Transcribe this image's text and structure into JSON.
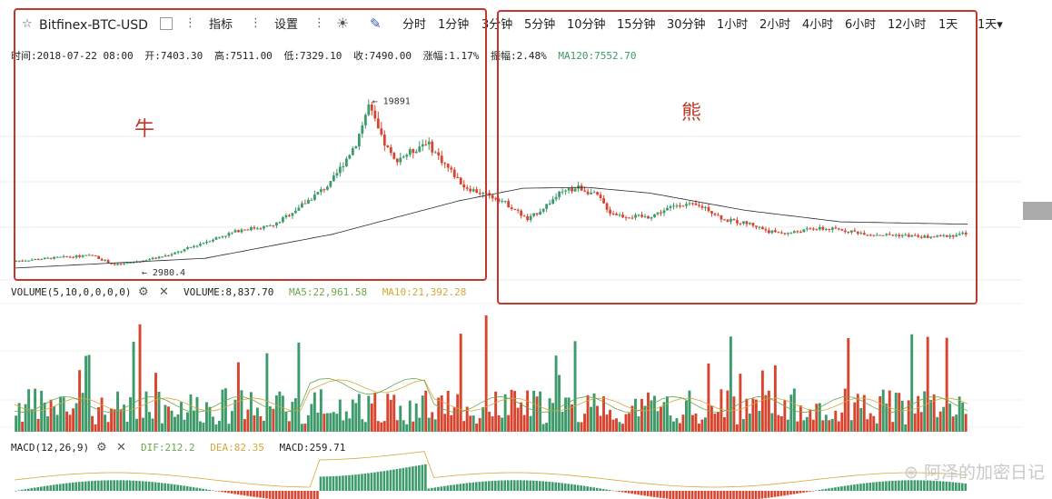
{
  "toolbar": {
    "star_icon": "star-outline-icon",
    "symbol": "Bitfinex-BTC-USD",
    "indicators_label": "指标",
    "settings_label": "设置",
    "intervals": [
      "分时",
      "1分钟",
      "3分钟",
      "5分钟",
      "10分钟",
      "15分钟",
      "30分钟",
      "1小时",
      "2小时",
      "4小时",
      "6小时",
      "12小时",
      "1天",
      "1天▾"
    ]
  },
  "info": {
    "time": "时间:2018-07-22 08:00",
    "open": "开:7403.30",
    "high": "高:7511.00",
    "low": "低:7329.10",
    "close": "收:7490.00",
    "change": "涨幅:1.17%",
    "amplitude": "振幅:2.48%",
    "ma120": "MA120:7552.70"
  },
  "volume_legend": {
    "name": "VOLUME(5,10,0,0,0,0)",
    "volume": "VOLUME:8,837.70",
    "ma5": "MA5:22,961.58",
    "ma10": "MA10:21,392.28"
  },
  "macd_legend": {
    "name": "MACD(12,26,9)",
    "dif": "DIF:212.2",
    "dea": "DEA:82.35",
    "macd": "MACD:259.71"
  },
  "annotations": {
    "bull": "牛",
    "bear": "熊"
  },
  "watermark": "⊛ 阿泽的加密日记",
  "colors": {
    "up": "#3d9a6a",
    "down": "#d9442f",
    "ma": "#2a2a2a",
    "box": "#c0392b",
    "ma5": "#d4a93a",
    "ma10": "#6aa84f"
  },
  "chart_data": {
    "type": "candlestick",
    "title": "Bitfinex-BTC-USD",
    "price_labels": {
      "high": "19891",
      "low": "2980.4"
    },
    "price_range": [
      2500,
      20500
    ],
    "close_path": [
      [
        0,
        3700
      ],
      [
        15,
        4100
      ],
      [
        25,
        4300
      ],
      [
        32,
        3300
      ],
      [
        40,
        3700
      ],
      [
        50,
        4400
      ],
      [
        62,
        5900
      ],
      [
        72,
        7000
      ],
      [
        82,
        7400
      ],
      [
        92,
        9800
      ],
      [
        100,
        11800
      ],
      [
        108,
        16000
      ],
      [
        112,
        19891
      ],
      [
        116,
        16500
      ],
      [
        120,
        14200
      ],
      [
        126,
        15200
      ],
      [
        130,
        16200
      ],
      [
        136,
        13800
      ],
      [
        142,
        11500
      ],
      [
        148,
        10700
      ],
      [
        153,
        10200
      ],
      [
        158,
        9100
      ],
      [
        162,
        8000
      ],
      [
        166,
        9000
      ],
      [
        172,
        10700
      ],
      [
        178,
        11400
      ],
      [
        184,
        10500
      ],
      [
        188,
        8800
      ],
      [
        192,
        8400
      ],
      [
        200,
        8300
      ],
      [
        210,
        9700
      ],
      [
        218,
        9300
      ],
      [
        224,
        8000
      ],
      [
        232,
        7600
      ],
      [
        238,
        6800
      ],
      [
        244,
        6600
      ],
      [
        252,
        7100
      ],
      [
        260,
        7000
      ],
      [
        270,
        6500
      ],
      [
        280,
        6400
      ],
      [
        288,
        6200
      ],
      [
        296,
        6400
      ],
      [
        300,
        6600
      ]
    ],
    "ma120_path": [
      [
        0,
        2980
      ],
      [
        60,
        4000
      ],
      [
        100,
        6500
      ],
      [
        140,
        10000
      ],
      [
        160,
        11300
      ],
      [
        180,
        11400
      ],
      [
        200,
        10800
      ],
      [
        230,
        9000
      ],
      [
        260,
        7800
      ],
      [
        300,
        7552.7
      ]
    ],
    "volume_series_note": "",
    "macd_range": [
      -600,
      1200
    ]
  }
}
